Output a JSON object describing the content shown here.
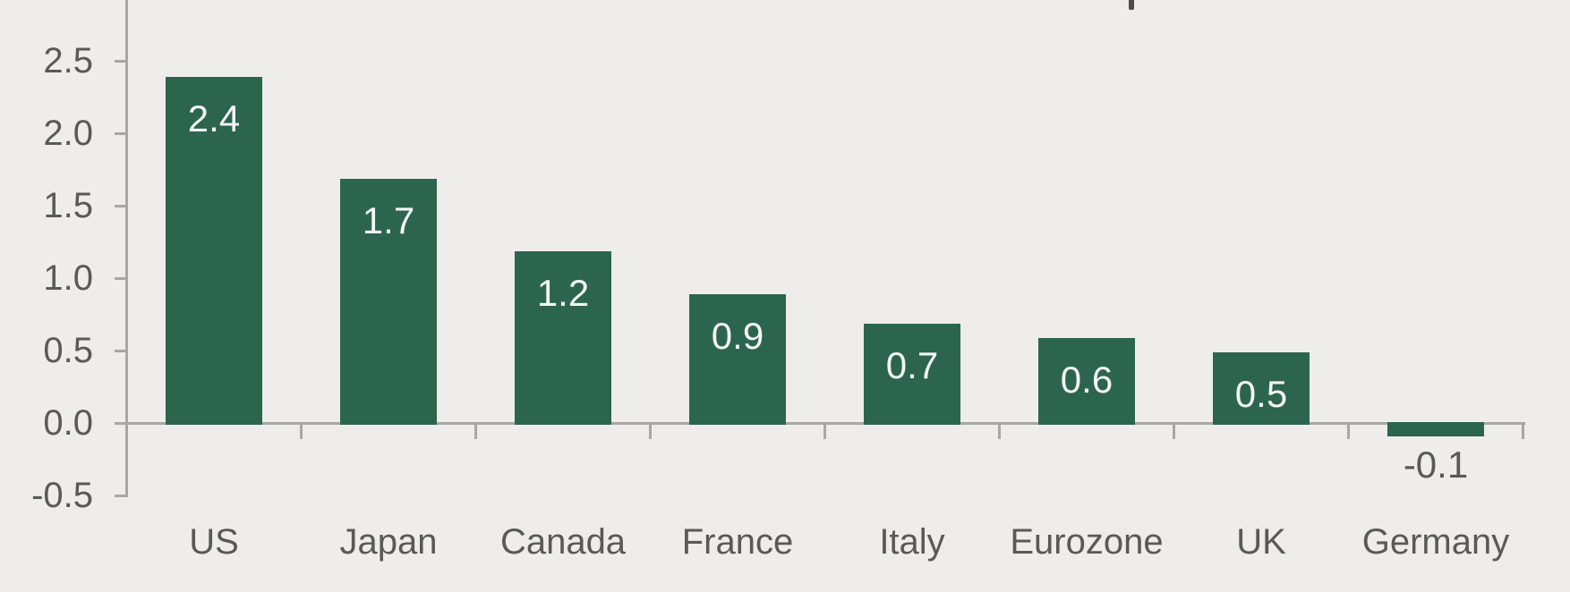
{
  "chart_data": {
    "type": "bar",
    "title": null,
    "note": "chart title is cropped out of frame; only a letter-descender fragment is visible at the top edge",
    "categories": [
      "US",
      "Japan",
      "Canada",
      "France",
      "Italy",
      "Eurozone",
      "UK",
      "Germany"
    ],
    "values": [
      2.4,
      1.7,
      1.2,
      0.9,
      0.7,
      0.6,
      0.5,
      -0.1
    ],
    "data_labels": [
      "2.4",
      "1.7",
      "1.2",
      "0.9",
      "0.7",
      "0.6",
      "0.5",
      "-0.1"
    ],
    "data_label_position": "inside-end (outside-end below bar for negative values)",
    "xlabel": "",
    "ylabel": "",
    "y_axis": {
      "tick_labels": [
        "2.5",
        "2.0",
        "1.5",
        "1.0",
        "0.5",
        "0.0",
        "-0.5"
      ],
      "tick_values": [
        2.5,
        2.0,
        1.5,
        1.0,
        0.5,
        0.0,
        -0.5
      ],
      "visible_range": [
        -0.5,
        2.9
      ]
    },
    "x_axis": {
      "tick_style": "between-categories",
      "baseline_value": 0
    },
    "grid": false,
    "legend": false,
    "colors": {
      "background": "#eeedeb",
      "bar": "#2c654d",
      "axis": "#a7a7a5",
      "tick_text": "#595959",
      "bar_label_positive": "#f4f6f3",
      "bar_label_negative": "#595959",
      "title_fragment": "#4a4a4a"
    }
  }
}
